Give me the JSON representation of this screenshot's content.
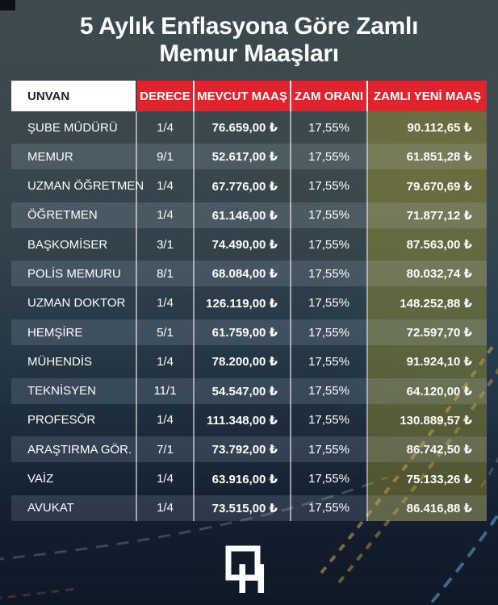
{
  "title": {
    "line1": "5 Aylık Enflasyona Göre Zamlı",
    "line2": "Memur Maaşları"
  },
  "chart_data": {
    "type": "table",
    "title": "5 Aylık Enflasyona Göre Zamlı Memur Maaşları",
    "columns": [
      "UNVAN",
      "DERECE",
      "MEVCUT MAAŞ",
      "ZAM ORANI",
      "ZAMLI YENİ MAAŞ"
    ],
    "rows": [
      [
        "ŞUBE MÜDÜRÜ",
        "1/4",
        "76.659,00 ₺",
        "17,55%",
        "90.112,65 ₺"
      ],
      [
        "MEMUR",
        "9/1",
        "52.617,00 ₺",
        "17,55%",
        "61.851,28 ₺"
      ],
      [
        "UZMAN ÖĞRETMEN",
        "1/4",
        "67.776,00 ₺",
        "17,55%",
        "79.670,69 ₺"
      ],
      [
        "ÖĞRETMEN",
        "1/4",
        "61.146,00 ₺",
        "17,55%",
        "71.877,12 ₺"
      ],
      [
        "BAŞKOMİSER",
        "3/1",
        "74.490,00 ₺",
        "17,55%",
        "87.563,00 ₺"
      ],
      [
        "POLİS MEMURU",
        "8/1",
        "68.084,00 ₺",
        "17,55%",
        "80.032,74 ₺"
      ],
      [
        "UZMAN DOKTOR",
        "1/4",
        "126.119,00 ₺",
        "17,55%",
        "148.252,88 ₺"
      ],
      [
        "HEMŞİRE",
        "5/1",
        "61.759,00 ₺",
        "17,55%",
        "72.597,70 ₺"
      ],
      [
        "MÜHENDİS",
        "1/4",
        "78.200,00 ₺",
        "17,55%",
        "91.924,10 ₺"
      ],
      [
        "TEKNİSYEN",
        "11/1",
        "54.547,00 ₺",
        "17,55%",
        "64.120,00 ₺"
      ],
      [
        "PROFESÖR",
        "1/4",
        "111.348,00 ₺",
        "17,55%",
        "130.889,57 ₺"
      ],
      [
        "ARAŞTIRMA GÖR.",
        "7/1",
        "73.792,00 ₺",
        "17,55%",
        "86.742,50 ₺"
      ],
      [
        "VAİZ",
        "1/4",
        "63.916,00 ₺",
        "17,55%",
        "75.133,26 ₺"
      ],
      [
        "AVUKAT",
        "1/4",
        "73.515,00 ₺",
        "17,55%",
        "86.416,88 ₺"
      ]
    ],
    "zam_orani_all_rows": "17,55%",
    "currency_symbol": "₺"
  },
  "footer": {
    "logo_letter": "H"
  },
  "colors": {
    "header_red": "#e2222c",
    "header_unvan_bg": "#ffffff",
    "highlight_column_tint": "rgba(173,160,45,0.40)",
    "row_alt_overlay": "rgba(205,222,238,0.14)",
    "background_top": "#3d4a50",
    "background_bottom": "#0f1826",
    "text": "#ffffff",
    "dash_yellow": "#d9a646",
    "dash_blue": "#3e82a8",
    "dash_gray": "#9aa3ad"
  }
}
